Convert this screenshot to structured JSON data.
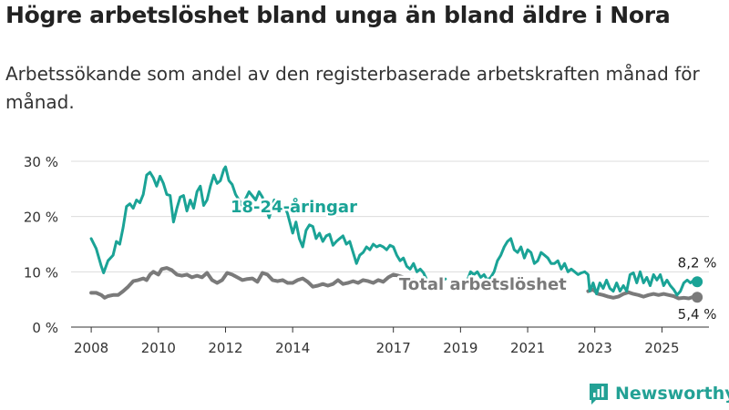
{
  "header": {
    "title": "Högre arbetslöshet bland unga än bland äldre i Nora",
    "subtitle": "Arbetssökande som andel av den registerbaserade arbetskraften månad för månad."
  },
  "chart_data": {
    "type": "line",
    "title": "Högre arbetslöshet bland unga än bland äldre i Nora",
    "subtitle": "Arbetssökande som andel av den registerbaserade arbetskraften månad för månad.",
    "xlabel": "",
    "ylabel": "",
    "ylim": [
      0,
      30
    ],
    "xlim": [
      2007.4,
      2026.4
    ],
    "yticks": [
      0,
      10,
      20,
      30
    ],
    "ytick_labels": [
      "0 %",
      "10 %",
      "20 %",
      "30 %"
    ],
    "xticks": [
      2008,
      2010,
      2012,
      2014,
      2017,
      2019,
      2021,
      2023,
      2025
    ],
    "xtick_labels": [
      "2008",
      "2010",
      "2012",
      "2014",
      "2017",
      "2019",
      "2021",
      "2023",
      "2025"
    ],
    "grid": true,
    "series": [
      {
        "name": "18-24-åringar",
        "color": "#1aa396",
        "points": [
          [
            2008.0,
            16.0
          ],
          [
            2008.15,
            14.2
          ],
          [
            2008.3,
            11.0
          ],
          [
            2008.37,
            9.8
          ],
          [
            2008.5,
            12.0
          ],
          [
            2008.65,
            13.0
          ],
          [
            2008.75,
            15.5
          ],
          [
            2008.85,
            15.0
          ],
          [
            2008.95,
            18.0
          ],
          [
            2009.05,
            21.8
          ],
          [
            2009.15,
            22.3
          ],
          [
            2009.25,
            21.5
          ],
          [
            2009.35,
            23.0
          ],
          [
            2009.45,
            22.5
          ],
          [
            2009.55,
            24.0
          ],
          [
            2009.65,
            27.5
          ],
          [
            2009.75,
            28.0
          ],
          [
            2009.85,
            27.0
          ],
          [
            2009.95,
            25.5
          ],
          [
            2010.05,
            27.3
          ],
          [
            2010.15,
            26.0
          ],
          [
            2010.25,
            24.0
          ],
          [
            2010.35,
            23.8
          ],
          [
            2010.45,
            19.0
          ],
          [
            2010.55,
            21.5
          ],
          [
            2010.65,
            23.5
          ],
          [
            2010.75,
            23.8
          ],
          [
            2010.85,
            21.0
          ],
          [
            2010.95,
            23.0
          ],
          [
            2011.05,
            21.5
          ],
          [
            2011.15,
            24.5
          ],
          [
            2011.25,
            25.5
          ],
          [
            2011.35,
            22.0
          ],
          [
            2011.45,
            23.0
          ],
          [
            2011.55,
            25.5
          ],
          [
            2011.65,
            27.5
          ],
          [
            2011.75,
            26.0
          ],
          [
            2011.85,
            26.5
          ],
          [
            2011.95,
            28.5
          ],
          [
            2012.0,
            29.0
          ],
          [
            2012.1,
            26.5
          ],
          [
            2012.2,
            25.8
          ],
          [
            2012.3,
            24.0
          ],
          [
            2012.5,
            22.0
          ],
          [
            2012.7,
            24.5
          ],
          [
            2012.9,
            23.0
          ],
          [
            2013.0,
            24.5
          ],
          [
            2013.1,
            23.5
          ],
          [
            2013.3,
            19.8
          ],
          [
            2013.45,
            23.0
          ],
          [
            2013.6,
            21.0
          ],
          [
            2013.75,
            22.0
          ],
          [
            2013.85,
            20.5
          ],
          [
            2014.0,
            17.0
          ],
          [
            2014.1,
            19.0
          ],
          [
            2014.2,
            16.0
          ],
          [
            2014.3,
            14.5
          ],
          [
            2014.4,
            17.5
          ],
          [
            2014.5,
            18.5
          ],
          [
            2014.6,
            18.2
          ],
          [
            2014.7,
            16.0
          ],
          [
            2014.8,
            17.0
          ],
          [
            2014.9,
            15.5
          ],
          [
            2015.0,
            16.5
          ],
          [
            2015.1,
            16.8
          ],
          [
            2015.2,
            14.8
          ],
          [
            2015.3,
            15.5
          ],
          [
            2015.4,
            16.0
          ],
          [
            2015.5,
            16.5
          ],
          [
            2015.6,
            15.0
          ],
          [
            2015.7,
            15.5
          ],
          [
            2015.8,
            13.5
          ],
          [
            2015.9,
            11.5
          ],
          [
            2016.0,
            13.0
          ],
          [
            2016.1,
            13.5
          ],
          [
            2016.2,
            14.5
          ],
          [
            2016.3,
            14.0
          ],
          [
            2016.4,
            15.0
          ],
          [
            2016.5,
            14.5
          ],
          [
            2016.6,
            14.8
          ],
          [
            2016.7,
            14.5
          ],
          [
            2016.8,
            14.0
          ],
          [
            2016.9,
            14.8
          ],
          [
            2017.0,
            14.5
          ],
          [
            2017.1,
            13.0
          ],
          [
            2017.2,
            12.0
          ],
          [
            2017.3,
            12.5
          ],
          [
            2017.4,
            11.0
          ],
          [
            2017.5,
            10.5
          ],
          [
            2017.6,
            11.5
          ],
          [
            2017.7,
            10.0
          ],
          [
            2017.8,
            10.5
          ],
          [
            2017.9,
            9.8
          ],
          [
            2018.0,
            8.5
          ],
          null,
          [
            2018.45,
            8.4
          ],
          [
            2018.55,
            8.7
          ],
          null,
          [
            2019.2,
            8.4
          ],
          [
            2019.3,
            10.0
          ],
          [
            2019.4,
            9.5
          ],
          [
            2019.5,
            10.0
          ],
          [
            2019.6,
            9.0
          ],
          [
            2019.7,
            9.5
          ],
          [
            2019.8,
            8.5
          ],
          [
            2019.9,
            9.0
          ],
          [
            2020.0,
            10.0
          ],
          [
            2020.1,
            12.0
          ],
          [
            2020.2,
            13.0
          ],
          [
            2020.3,
            14.5
          ],
          [
            2020.4,
            15.5
          ],
          [
            2020.5,
            16.0
          ],
          [
            2020.6,
            14.0
          ],
          [
            2020.7,
            13.5
          ],
          [
            2020.8,
            14.5
          ],
          [
            2020.9,
            12.5
          ],
          [
            2021.0,
            14.0
          ],
          [
            2021.1,
            13.5
          ],
          [
            2021.2,
            11.5
          ],
          [
            2021.3,
            12.0
          ],
          [
            2021.4,
            13.5
          ],
          [
            2021.5,
            13.0
          ],
          [
            2021.6,
            12.5
          ],
          [
            2021.7,
            11.5
          ],
          [
            2021.8,
            11.5
          ],
          [
            2021.9,
            12.0
          ],
          [
            2022.0,
            10.5
          ],
          [
            2022.1,
            11.5
          ],
          [
            2022.2,
            10.0
          ],
          [
            2022.3,
            10.5
          ],
          [
            2022.4,
            10.0
          ],
          [
            2022.5,
            9.5
          ],
          [
            2022.6,
            9.8
          ],
          [
            2022.7,
            10.0
          ],
          [
            2022.8,
            9.5
          ],
          [
            2022.85,
            6.5
          ],
          [
            2022.95,
            8.0
          ],
          [
            2023.05,
            6.0
          ],
          [
            2023.15,
            8.0
          ],
          [
            2023.25,
            7.0
          ],
          [
            2023.35,
            8.5
          ],
          [
            2023.45,
            7.0
          ],
          [
            2023.55,
            6.5
          ],
          [
            2023.65,
            8.0
          ],
          [
            2023.75,
            6.5
          ],
          [
            2023.85,
            7.5
          ],
          [
            2023.95,
            6.5
          ],
          [
            2024.05,
            9.5
          ],
          [
            2024.15,
            9.8
          ],
          [
            2024.25,
            8.0
          ],
          [
            2024.35,
            10.0
          ],
          [
            2024.45,
            8.0
          ],
          [
            2024.55,
            9.0
          ],
          [
            2024.65,
            7.5
          ],
          [
            2024.75,
            9.5
          ],
          [
            2024.85,
            8.5
          ],
          [
            2024.95,
            9.5
          ],
          [
            2025.05,
            7.5
          ],
          [
            2025.15,
            8.5
          ],
          [
            2025.25,
            7.5
          ],
          [
            2025.35,
            6.8
          ],
          [
            2025.45,
            5.8
          ],
          [
            2025.55,
            6.5
          ],
          [
            2025.65,
            8.0
          ],
          [
            2025.75,
            8.5
          ],
          [
            2025.85,
            8.0
          ],
          [
            2025.95,
            8.5
          ],
          [
            2026.05,
            8.2
          ]
        ]
      },
      {
        "name": "Total arbetslöshet",
        "color": "#7a7a7a",
        "points": [
          [
            2008.0,
            6.2
          ],
          [
            2008.15,
            6.2
          ],
          [
            2008.3,
            5.8
          ],
          [
            2008.4,
            5.3
          ],
          [
            2008.5,
            5.6
          ],
          [
            2008.65,
            5.8
          ],
          [
            2008.8,
            5.8
          ],
          [
            2008.95,
            6.5
          ],
          [
            2009.1,
            7.3
          ],
          [
            2009.25,
            8.3
          ],
          [
            2009.4,
            8.5
          ],
          [
            2009.55,
            8.8
          ],
          [
            2009.65,
            8.5
          ],
          [
            2009.75,
            9.5
          ],
          [
            2009.85,
            10.0
          ],
          [
            2010.0,
            9.5
          ],
          [
            2010.1,
            10.5
          ],
          [
            2010.25,
            10.7
          ],
          [
            2010.4,
            10.3
          ],
          [
            2010.55,
            9.5
          ],
          [
            2010.7,
            9.3
          ],
          [
            2010.85,
            9.5
          ],
          [
            2011.0,
            9.0
          ],
          [
            2011.15,
            9.3
          ],
          [
            2011.3,
            9.0
          ],
          [
            2011.45,
            9.8
          ],
          [
            2011.6,
            8.5
          ],
          [
            2011.75,
            8.0
          ],
          [
            2011.9,
            8.5
          ],
          [
            2012.05,
            9.8
          ],
          [
            2012.2,
            9.5
          ],
          [
            2012.35,
            9.0
          ],
          [
            2012.5,
            8.5
          ],
          [
            2012.65,
            8.7
          ],
          [
            2012.8,
            8.8
          ],
          [
            2012.95,
            8.2
          ],
          [
            2013.1,
            9.8
          ],
          [
            2013.25,
            9.5
          ],
          [
            2013.4,
            8.5
          ],
          [
            2013.55,
            8.3
          ],
          [
            2013.7,
            8.5
          ],
          [
            2013.85,
            8.0
          ],
          [
            2014.0,
            8.0
          ],
          [
            2014.15,
            8.5
          ],
          [
            2014.3,
            8.8
          ],
          [
            2014.45,
            8.2
          ],
          [
            2014.6,
            7.3
          ],
          [
            2014.75,
            7.5
          ],
          [
            2014.9,
            7.8
          ],
          [
            2015.05,
            7.5
          ],
          [
            2015.2,
            7.8
          ],
          [
            2015.35,
            8.5
          ],
          [
            2015.5,
            7.8
          ],
          [
            2015.65,
            8.0
          ],
          [
            2015.8,
            8.3
          ],
          [
            2015.95,
            8.0
          ],
          [
            2016.1,
            8.5
          ],
          [
            2016.25,
            8.3
          ],
          [
            2016.4,
            8.0
          ],
          [
            2016.55,
            8.5
          ],
          [
            2016.7,
            8.2
          ],
          [
            2016.85,
            9.0
          ],
          [
            2017.0,
            9.5
          ],
          [
            2017.15,
            9.3
          ],
          [
            2017.3,
            9.0
          ],
          [
            2017.45,
            8.5
          ],
          [
            2017.6,
            8.5
          ],
          [
            2017.75,
            8.0
          ],
          [
            2017.9,
            7.8
          ],
          [
            2018.05,
            8.0
          ],
          null,
          [
            2022.8,
            6.5
          ],
          [
            2022.95,
            6.8
          ],
          [
            2023.1,
            6.0
          ],
          [
            2023.25,
            5.8
          ],
          [
            2023.4,
            5.5
          ],
          [
            2023.55,
            5.3
          ],
          [
            2023.7,
            5.5
          ],
          [
            2023.85,
            6.0
          ],
          [
            2024.0,
            6.3
          ],
          [
            2024.15,
            6.0
          ],
          [
            2024.3,
            5.8
          ],
          [
            2024.45,
            5.5
          ],
          [
            2024.6,
            5.8
          ],
          [
            2024.75,
            6.0
          ],
          [
            2024.9,
            5.8
          ],
          [
            2025.05,
            6.0
          ],
          [
            2025.2,
            5.8
          ],
          [
            2025.35,
            5.6
          ],
          [
            2025.5,
            5.2
          ],
          [
            2025.65,
            5.3
          ],
          [
            2025.8,
            5.2
          ],
          [
            2025.95,
            5.5
          ],
          [
            2026.05,
            5.4
          ]
        ]
      }
    ],
    "annotations": {
      "youth_label": "18-24-åringar",
      "total_label": "Total arbetslöshet",
      "youth_end_label": "8,2 %",
      "total_end_label": "5,4 %"
    }
  },
  "branding": {
    "logo_text": "Newsworthy",
    "logo_color": "#23a195"
  }
}
